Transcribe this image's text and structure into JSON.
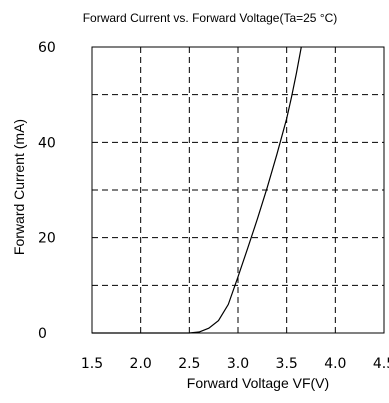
{
  "chart_data": {
    "type": "line",
    "title": "Forward Current vs. Forward  Voltage(Ta=25 °C)",
    "xlabel": "Forward Voltage  VF(V)",
    "ylabel": "Forward Current (mA)",
    "xlim": [
      1.5,
      4.5
    ],
    "ylim": [
      0,
      60
    ],
    "x_ticks": [
      "1.5",
      "2.0",
      "2.5",
      "3.0",
      "3.5",
      "4.0",
      "4.5"
    ],
    "y_ticks": [
      "0",
      "20",
      "40",
      "60"
    ],
    "grid": {
      "x": [
        2.0,
        2.5,
        3.0,
        3.5,
        4.0
      ],
      "y": [
        10,
        20,
        30,
        40,
        50
      ]
    },
    "series": [
      {
        "color": "#000000",
        "x": [
          2.5,
          2.6,
          2.7,
          2.8,
          2.9,
          3.0,
          3.1,
          3.2,
          3.3,
          3.4,
          3.5,
          3.55,
          3.6,
          3.65
        ],
        "y": [
          0,
          0.2,
          1.0,
          2.6,
          6.0,
          11.8,
          17.8,
          24.0,
          30.5,
          37.5,
          45.0,
          49.5,
          54.5,
          60
        ]
      }
    ]
  }
}
